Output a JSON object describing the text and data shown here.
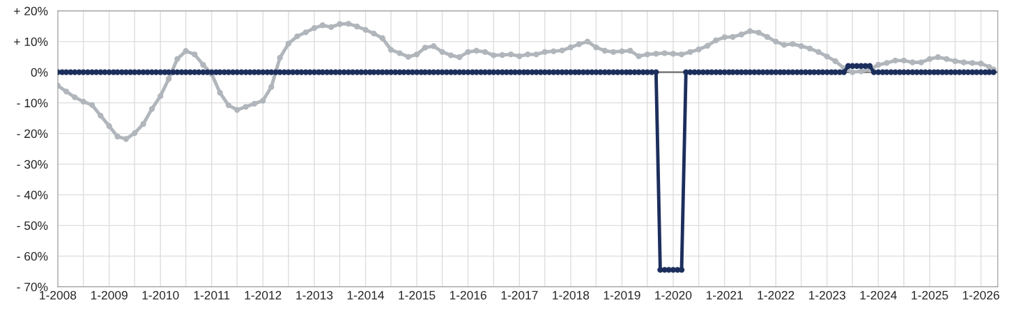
{
  "chart_data": {
    "type": "line",
    "marker": "circle",
    "line_style": "solid",
    "grid": true,
    "xlim": [
      "2008-01",
      "2026-05"
    ],
    "xticks": [
      {
        "value": "2008-01",
        "label": "1-2008"
      },
      {
        "value": "2008-07",
        "label": null
      },
      {
        "value": "2009-01",
        "label": "1-2009"
      },
      {
        "value": "2009-07",
        "label": null
      },
      {
        "value": "2010-01",
        "label": "1-2010"
      },
      {
        "value": "2010-07",
        "label": null
      },
      {
        "value": "2011-01",
        "label": "1-2011"
      },
      {
        "value": "2011-07",
        "label": null
      },
      {
        "value": "2012-01",
        "label": "1-2012"
      },
      {
        "value": "2012-07",
        "label": null
      },
      {
        "value": "2013-01",
        "label": "1-2013"
      },
      {
        "value": "2013-07",
        "label": null
      },
      {
        "value": "2014-01",
        "label": "1-2014"
      },
      {
        "value": "2014-07",
        "label": null
      },
      {
        "value": "2015-01",
        "label": "1-2015"
      },
      {
        "value": "2015-07",
        "label": null
      },
      {
        "value": "2016-01",
        "label": "1-2016"
      },
      {
        "value": "2016-07",
        "label": null
      },
      {
        "value": "2017-01",
        "label": "1-2017"
      },
      {
        "value": "2017-07",
        "label": null
      },
      {
        "value": "2018-01",
        "label": "1-2018"
      },
      {
        "value": "2018-07",
        "label": null
      },
      {
        "value": "2019-01",
        "label": "1-2019"
      },
      {
        "value": "2019-07",
        "label": null
      },
      {
        "value": "2020-01",
        "label": "1-2020"
      },
      {
        "value": "2020-07",
        "label": null
      },
      {
        "value": "2021-01",
        "label": "1-2021"
      },
      {
        "value": "2021-07",
        "label": null
      },
      {
        "value": "2022-01",
        "label": "1-2022"
      },
      {
        "value": "2022-07",
        "label": null
      },
      {
        "value": "2023-01",
        "label": "1-2023"
      },
      {
        "value": "2023-07",
        "label": null
      },
      {
        "value": "2024-01",
        "label": "1-2024"
      },
      {
        "value": "2024-07",
        "label": null
      },
      {
        "value": "2025-01",
        "label": "1-2025"
      },
      {
        "value": "2025-07",
        "label": null
      },
      {
        "value": "2026-01",
        "label": "1-2026"
      }
    ],
    "ylim": [
      -70,
      20
    ],
    "yticks": [
      {
        "value": 20,
        "label": "+ 20%"
      },
      {
        "value": 10,
        "label": "+ 10%"
      },
      {
        "value": 0,
        "label": "0%"
      },
      {
        "value": -10,
        "label": "- 10%"
      },
      {
        "value": -20,
        "label": "- 20%"
      },
      {
        "value": -30,
        "label": "- 30%"
      },
      {
        "value": -40,
        "label": "- 40%"
      },
      {
        "value": -50,
        "label": "- 50%"
      },
      {
        "value": -60,
        "label": "- 60%"
      },
      {
        "value": -70,
        "label": "- 70%"
      }
    ],
    "ref_lines": [
      {
        "axis": "y",
        "value": 0,
        "color": "#808080"
      }
    ],
    "series": [
      {
        "color": "#b0b6bb",
        "x": [
          "2008-01",
          "2008-03",
          "2008-05",
          "2008-07",
          "2008-09",
          "2008-11",
          "2009-01",
          "2009-03",
          "2009-05",
          "2009-07",
          "2009-09",
          "2009-11",
          "2010-01",
          "2010-03",
          "2010-05",
          "2010-07",
          "2010-09",
          "2010-11",
          "2011-01",
          "2011-03",
          "2011-05",
          "2011-07",
          "2011-09",
          "2011-11",
          "2012-01",
          "2012-03",
          "2012-05",
          "2012-07",
          "2012-09",
          "2012-11",
          "2013-01",
          "2013-03",
          "2013-05",
          "2013-07",
          "2013-09",
          "2013-11",
          "2014-01",
          "2014-03",
          "2014-05",
          "2014-07",
          "2014-09",
          "2014-11",
          "2015-01",
          "2015-03",
          "2015-05",
          "2015-07",
          "2015-09",
          "2015-11",
          "2016-01",
          "2016-03",
          "2016-05",
          "2016-07",
          "2016-09",
          "2016-11",
          "2017-01",
          "2017-03",
          "2017-05",
          "2017-07",
          "2017-09",
          "2017-11",
          "2018-01",
          "2018-03",
          "2018-05",
          "2018-07",
          "2018-09",
          "2018-11",
          "2019-01",
          "2019-03",
          "2019-05",
          "2019-07",
          "2019-09",
          "2019-11",
          "2020-01",
          "2020-03",
          "2020-05",
          "2020-07",
          "2020-09",
          "2020-11",
          "2021-01",
          "2021-03",
          "2021-05",
          "2021-07",
          "2021-09",
          "2021-11",
          "2022-01",
          "2022-03",
          "2022-05",
          "2022-07",
          "2022-09",
          "2022-11",
          "2023-01",
          "2023-03",
          "2023-05",
          "2023-07",
          "2023-09",
          "2023-11",
          "2024-01",
          "2024-03",
          "2024-05",
          "2024-07",
          "2024-09",
          "2024-11",
          "2025-01",
          "2025-03",
          "2025-05",
          "2025-07",
          "2025-09",
          "2025-11",
          "2026-01",
          "2026-03",
          "2026-04"
        ],
        "values": [
          -4.4,
          -6.3,
          -8.2,
          -9.6,
          -10.7,
          -14.2,
          -17.6,
          -21.0,
          -21.8,
          -19.9,
          -16.9,
          -12.0,
          -7.8,
          -2.2,
          4.3,
          6.9,
          5.8,
          2.4,
          -0.6,
          -6.7,
          -10.8,
          -12.3,
          -11.3,
          -10.3,
          -9.3,
          -4.8,
          4.7,
          9.3,
          11.7,
          13.0,
          14.4,
          15.3,
          14.7,
          15.7,
          15.8,
          14.9,
          13.8,
          12.6,
          11.1,
          7.3,
          6.2,
          5.0,
          5.8,
          8.0,
          8.5,
          6.6,
          5.5,
          4.9,
          6.6,
          7.0,
          6.6,
          5.5,
          5.6,
          5.8,
          5.2,
          5.8,
          5.8,
          6.6,
          6.8,
          7.1,
          8.1,
          9.1,
          10.0,
          8.1,
          7.0,
          6.6,
          6.8,
          7.0,
          5.2,
          5.8,
          6.0,
          6.2,
          6.0,
          5.8,
          6.6,
          7.4,
          8.6,
          10.4,
          11.4,
          11.5,
          12.3,
          13.4,
          12.9,
          11.5,
          10.0,
          8.9,
          9.2,
          8.5,
          7.7,
          6.6,
          5.1,
          3.6,
          1.3,
          0.0,
          0.3,
          0.9,
          2.4,
          3.0,
          3.8,
          3.8,
          3.2,
          3.2,
          4.3,
          4.9,
          4.3,
          3.6,
          3.2,
          3.0,
          2.8,
          1.7,
          0.9
        ]
      },
      {
        "color": "#1c2e5c",
        "x": [
          "2008-01",
          "2008-02",
          "2008-03",
          "2008-04",
          "2008-05",
          "2008-06",
          "2008-07",
          "2008-08",
          "2008-09",
          "2008-10",
          "2008-11",
          "2008-12",
          "2009-01",
          "2009-02",
          "2009-03",
          "2009-04",
          "2009-05",
          "2009-06",
          "2009-07",
          "2009-08",
          "2009-09",
          "2009-10",
          "2009-11",
          "2009-12",
          "2010-01",
          "2010-02",
          "2010-03",
          "2010-04",
          "2010-05",
          "2010-06",
          "2010-07",
          "2010-08",
          "2010-09",
          "2010-10",
          "2010-11",
          "2010-12",
          "2011-01",
          "2011-02",
          "2011-03",
          "2011-04",
          "2011-05",
          "2011-06",
          "2011-07",
          "2011-08",
          "2011-09",
          "2011-10",
          "2011-11",
          "2011-12",
          "2012-01",
          "2012-02",
          "2012-03",
          "2012-04",
          "2012-05",
          "2012-06",
          "2012-07",
          "2012-08",
          "2012-09",
          "2012-10",
          "2012-11",
          "2012-12",
          "2013-01",
          "2013-02",
          "2013-03",
          "2013-04",
          "2013-05",
          "2013-06",
          "2013-07",
          "2013-08",
          "2013-09",
          "2013-10",
          "2013-11",
          "2013-12",
          "2014-01",
          "2014-02",
          "2014-03",
          "2014-04",
          "2014-05",
          "2014-06",
          "2014-07",
          "2014-08",
          "2014-09",
          "2014-10",
          "2014-11",
          "2014-12",
          "2015-01",
          "2015-02",
          "2015-03",
          "2015-04",
          "2015-05",
          "2015-06",
          "2015-07",
          "2015-08",
          "2015-09",
          "2015-10",
          "2015-11",
          "2015-12",
          "2016-01",
          "2016-02",
          "2016-03",
          "2016-04",
          "2016-05",
          "2016-06",
          "2016-07",
          "2016-08",
          "2016-09",
          "2016-10",
          "2016-11",
          "2016-12",
          "2017-01",
          "2017-02",
          "2017-03",
          "2017-04",
          "2017-05",
          "2017-06",
          "2017-07",
          "2017-08",
          "2017-09",
          "2017-10",
          "2017-11",
          "2017-12",
          "2018-01",
          "2018-02",
          "2018-03",
          "2018-04",
          "2018-05",
          "2018-06",
          "2018-07",
          "2018-08",
          "2018-09",
          "2018-10",
          "2018-11",
          "2018-12",
          "2019-01",
          "2019-02",
          "2019-03",
          "2019-04",
          "2019-05",
          "2019-06",
          "2019-07",
          "2019-08",
          "2019-09",
          "2019-10",
          "2019-11",
          "2019-12",
          "2020-01",
          "2020-02",
          "2020-03",
          "2020-04",
          "2020-05",
          "2020-06",
          "2020-07",
          "2020-08",
          "2020-09",
          "2020-10",
          "2020-11",
          "2020-12",
          "2021-01",
          "2021-02",
          "2021-03",
          "2021-04",
          "2021-05",
          "2021-06",
          "2021-07",
          "2021-08",
          "2021-09",
          "2021-10",
          "2021-11",
          "2021-12",
          "2022-01",
          "2022-02",
          "2022-03",
          "2022-04",
          "2022-05",
          "2022-06",
          "2022-07",
          "2022-08",
          "2022-09",
          "2022-10",
          "2022-11",
          "2022-12",
          "2023-01",
          "2023-02",
          "2023-03",
          "2023-04",
          "2023-05",
          "2023-06",
          "2023-07",
          "2023-08",
          "2023-09",
          "2023-10",
          "2023-11",
          "2023-12",
          "2024-01",
          "2024-02",
          "2024-03",
          "2024-04",
          "2024-05",
          "2024-06",
          "2024-07",
          "2024-08",
          "2024-09",
          "2024-10",
          "2024-11",
          "2024-12",
          "2025-01",
          "2025-02",
          "2025-03",
          "2025-04",
          "2025-05",
          "2025-06",
          "2025-07",
          "2025-08",
          "2025-09",
          "2025-10",
          "2025-11",
          "2025-12",
          "2026-01",
          "2026-02",
          "2026-03",
          "2026-04"
        ],
        "values": [
          0,
          0,
          0,
          0,
          0,
          0,
          0,
          0,
          0,
          0,
          0,
          0,
          0,
          0,
          0,
          0,
          0,
          0,
          0,
          0,
          0,
          0,
          0,
          0,
          0,
          0,
          0,
          0,
          0,
          0,
          0,
          0,
          0,
          0,
          0,
          0,
          0,
          0,
          0,
          0,
          0,
          0,
          0,
          0,
          0,
          0,
          0,
          0,
          0,
          0,
          0,
          0,
          0,
          0,
          0,
          0,
          0,
          0,
          0,
          0,
          0,
          0,
          0,
          0,
          0,
          0,
          0,
          0,
          0,
          0,
          0,
          0,
          0,
          0,
          0,
          0,
          0,
          0,
          0,
          0,
          0,
          0,
          0,
          0,
          0,
          0,
          0,
          0,
          0,
          0,
          0,
          0,
          0,
          0,
          0,
          0,
          0,
          0,
          0,
          0,
          0,
          0,
          0,
          0,
          0,
          0,
          0,
          0,
          0,
          0,
          0,
          0,
          0,
          0,
          0,
          0,
          0,
          0,
          0,
          0,
          0,
          0,
          0,
          0,
          0,
          0,
          0,
          0,
          0,
          0,
          0,
          0,
          0,
          0,
          0,
          0,
          0,
          0,
          0,
          0,
          0,
          -64.5,
          -64.5,
          -64.5,
          -64.5,
          -64.5,
          -64.5,
          0,
          0,
          0,
          0,
          0,
          0,
          0,
          0,
          0,
          0,
          0,
          0,
          0,
          0,
          0,
          0,
          0,
          0,
          0,
          0,
          0,
          0,
          0,
          0,
          0,
          0,
          0,
          0,
          0,
          0,
          0,
          0,
          0,
          0,
          0,
          0,
          0,
          0,
          2,
          2,
          2,
          2,
          2,
          2,
          0,
          0,
          0,
          0,
          0,
          0,
          0,
          0,
          0,
          0,
          0,
          0,
          0,
          0,
          0,
          0,
          0,
          0,
          0,
          0,
          0,
          0,
          0,
          0,
          0,
          0,
          0,
          0,
          0
        ]
      }
    ]
  }
}
